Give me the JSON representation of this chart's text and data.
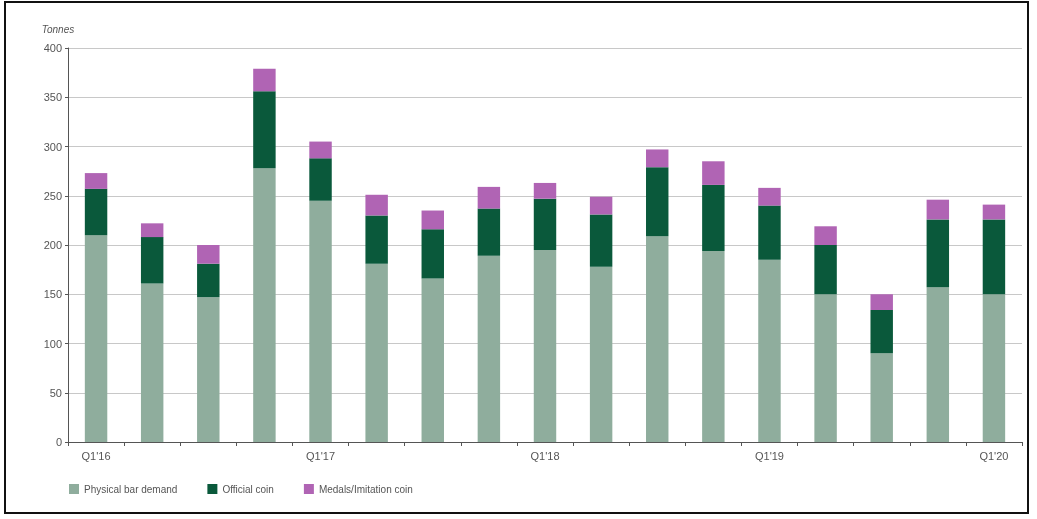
{
  "chart_data": {
    "type": "bar",
    "ylabel": "Tonnes",
    "categories": [
      "Q1'16",
      null,
      null,
      null,
      "Q1'17",
      null,
      null,
      null,
      "Q1'18",
      null,
      null,
      null,
      "Q1'19",
      null,
      null,
      null,
      "Q1'20"
    ],
    "series": [
      {
        "name": "Physical bar demand",
        "color": "#8fad9d",
        "values": [
          210,
          161,
          147,
          278,
          245,
          181,
          166,
          189,
          195,
          178,
          209,
          194,
          185,
          150,
          90,
          157,
          150
        ]
      },
      {
        "name": "Official coin",
        "color": "#0a593b",
        "values": [
          47,
          47,
          34,
          78,
          43,
          49,
          50,
          48,
          52,
          53,
          70,
          67,
          55,
          50,
          44,
          69,
          76
        ]
      },
      {
        "name": "Medals/Imitation coin",
        "color": "#b064b4",
        "values": [
          16,
          14,
          19,
          23,
          17,
          21,
          19,
          22,
          16,
          18,
          18,
          24,
          18,
          19,
          16,
          20,
          15
        ]
      }
    ],
    "stacked": true,
    "ylim": [
      0,
      400
    ],
    "yticks": [
      0,
      50,
      100,
      150,
      200,
      250,
      300,
      350,
      400
    ],
    "grid": "y",
    "legend": "bottom left"
  }
}
